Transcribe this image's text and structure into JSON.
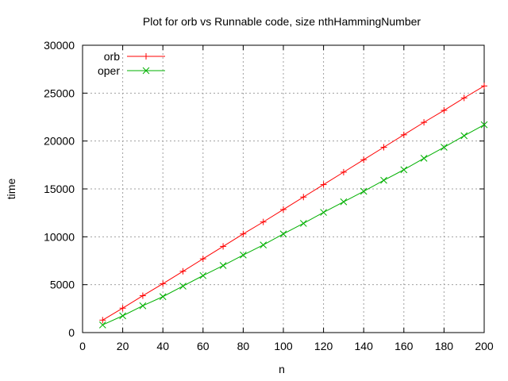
{
  "chart_data": {
    "type": "line",
    "title": "Plot for orb vs Runnable code, size nthHammingNumber",
    "xlabel": "n",
    "ylabel": "time",
    "xlim": [
      0,
      200
    ],
    "ylim": [
      0,
      30000
    ],
    "xticks": [
      0,
      20,
      40,
      60,
      80,
      100,
      120,
      140,
      160,
      180,
      200
    ],
    "yticks": [
      0,
      5000,
      10000,
      15000,
      20000,
      25000,
      30000
    ],
    "grid": true,
    "legend": "top-left",
    "series": [
      {
        "name": "orb",
        "color": "#ff0000",
        "marker": "plus",
        "x": [
          10,
          20,
          30,
          40,
          50,
          60,
          70,
          80,
          90,
          100,
          110,
          120,
          130,
          140,
          150,
          160,
          170,
          180,
          190,
          200
        ],
        "values": [
          1300,
          2550,
          3850,
          5100,
          6400,
          7700,
          9000,
          10300,
          11550,
          12850,
          14150,
          15450,
          16750,
          18050,
          19350,
          20650,
          21950,
          23200,
          24500,
          25750
        ]
      },
      {
        "name": "oper",
        "color": "#00b000",
        "marker": "cross",
        "x": [
          10,
          20,
          30,
          40,
          50,
          60,
          70,
          80,
          90,
          100,
          110,
          120,
          130,
          140,
          150,
          160,
          170,
          180,
          190,
          200
        ],
        "values": [
          800,
          1750,
          2800,
          3750,
          4850,
          5950,
          7000,
          8100,
          9150,
          10300,
          11400,
          12550,
          13650,
          14750,
          15900,
          17000,
          18200,
          19350,
          20550,
          21700
        ]
      }
    ]
  }
}
